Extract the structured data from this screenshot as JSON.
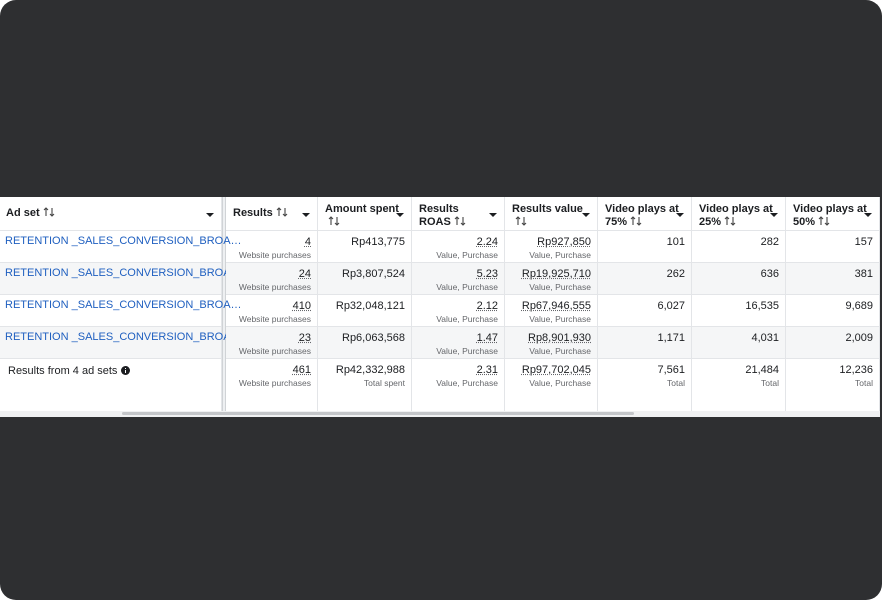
{
  "table": {
    "columns": [
      "Ad set",
      "Results",
      "Amount spent",
      "Results ROAS",
      "Results value",
      "Video plays at 75%",
      "Video plays at 25%",
      "Video plays at 50%"
    ],
    "rows": [
      {
        "name": "RETENTION _SALES_CONVERSION_BROA…",
        "cells": [
          {
            "value": "4",
            "note": "Website purchases"
          },
          {
            "value": "Rp413,775"
          },
          {
            "value": "2.24",
            "note": "Value, Purchase"
          },
          {
            "value": "Rp927,850",
            "note": "Value, Purchase"
          },
          {
            "value": "101"
          },
          {
            "value": "282"
          },
          {
            "value": "157"
          }
        ]
      },
      {
        "name": "RETENTION _SALES_CONVERSION_BROA…",
        "cells": [
          {
            "value": "24",
            "note": "Website purchases"
          },
          {
            "value": "Rp3,807,524"
          },
          {
            "value": "5.23",
            "note": "Value, Purchase"
          },
          {
            "value": "Rp19,925,710",
            "note": "Value, Purchase"
          },
          {
            "value": "262"
          },
          {
            "value": "636"
          },
          {
            "value": "381"
          }
        ]
      },
      {
        "name": "RETENTION _SALES_CONVERSION_BROA…",
        "cells": [
          {
            "value": "410",
            "note": "Website purchases"
          },
          {
            "value": "Rp32,048,121"
          },
          {
            "value": "2.12",
            "note": "Value, Purchase"
          },
          {
            "value": "Rp67,946,555",
            "note": "Value, Purchase"
          },
          {
            "value": "6,027"
          },
          {
            "value": "16,535"
          },
          {
            "value": "9,689"
          }
        ]
      },
      {
        "name": "RETENTION _SALES_CONVERSION_BROA…",
        "cells": [
          {
            "value": "23",
            "note": "Website purchases"
          },
          {
            "value": "Rp6,063,568"
          },
          {
            "value": "1.47",
            "note": "Value, Purchase"
          },
          {
            "value": "Rp8,901,930",
            "note": "Value, Purchase"
          },
          {
            "value": "1,171"
          },
          {
            "value": "4,031"
          },
          {
            "value": "2,009"
          }
        ]
      }
    ],
    "summary": {
      "label": "Results from 4 ad sets",
      "cells": [
        {
          "value": "461",
          "note": "Website purchases"
        },
        {
          "value": "Rp42,332,988",
          "note": "Total spent"
        },
        {
          "value": "2.31",
          "note": "Value, Purchase"
        },
        {
          "value": "Rp97,702,045",
          "note": "Value, Purchase"
        },
        {
          "value": "7,561",
          "note": "Total"
        },
        {
          "value": "21,484",
          "note": "Total"
        },
        {
          "value": "12,236",
          "note": "Total"
        }
      ]
    }
  }
}
